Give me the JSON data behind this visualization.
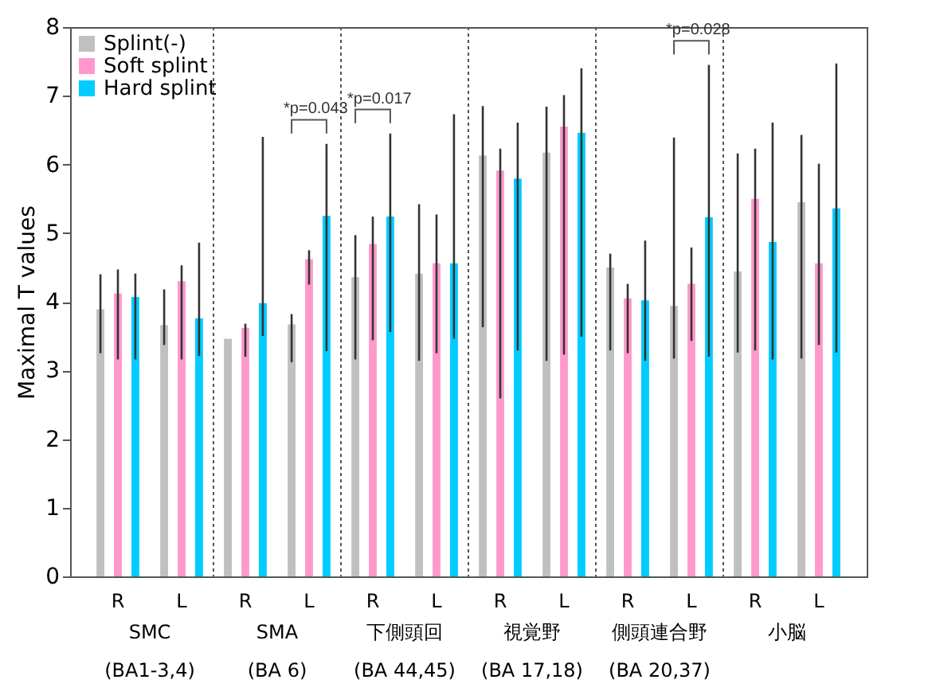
{
  "chart_data": {
    "type": "bar",
    "ylabel": "Maximal T values",
    "categories": [
      "R",
      "L",
      "R",
      "L",
      "R",
      "L",
      "R",
      "L",
      "R",
      "L",
      "R",
      "L"
    ],
    "series": [
      {
        "name": "Splint(-)",
        "color": "#c0c0c0",
        "values": [
          3.89,
          3.66,
          3.46,
          3.67,
          4.36,
          4.41,
          6.13,
          6.17,
          4.5,
          3.94,
          4.44,
          5.45
        ],
        "errors": [
          [
            3.25,
            4.4
          ],
          [
            3.37,
            4.18
          ],
          null,
          [
            3.12,
            3.82
          ],
          [
            3.16,
            4.97
          ],
          [
            3.14,
            5.42
          ],
          [
            3.63,
            6.85
          ],
          [
            3.14,
            6.84
          ],
          [
            3.29,
            4.7
          ],
          [
            3.17,
            6.39
          ],
          [
            3.26,
            6.16
          ],
          [
            3.17,
            6.43
          ]
        ]
      },
      {
        "name": "Soft splint",
        "color": "#ff99cc",
        "values": [
          4.12,
          4.3,
          3.62,
          4.62,
          4.84,
          4.56,
          5.91,
          6.55,
          4.05,
          4.26,
          5.5,
          4.56
        ],
        "errors": [
          [
            3.16,
            4.47
          ],
          [
            3.16,
            4.53
          ],
          [
            3.2,
            3.68
          ],
          [
            4.25,
            4.75
          ],
          [
            3.44,
            5.24
          ],
          [
            3.25,
            5.27
          ],
          [
            2.59,
            6.23
          ],
          [
            3.23,
            7.01
          ],
          [
            3.25,
            4.26
          ],
          [
            3.43,
            4.79
          ],
          [
            3.29,
            6.23
          ],
          [
            3.37,
            6.01
          ]
        ]
      },
      {
        "name": "Hard splint",
        "color": "#00ccff",
        "values": [
          4.07,
          3.76,
          3.98,
          5.25,
          5.24,
          4.56,
          5.79,
          6.46,
          4.02,
          5.23,
          4.87,
          5.36
        ],
        "errors": [
          [
            3.16,
            4.41
          ],
          [
            3.21,
            4.86
          ],
          [
            3.5,
            6.4
          ],
          [
            3.28,
            6.3
          ],
          [
            3.56,
            6.45
          ],
          [
            3.46,
            6.73
          ],
          [
            3.29,
            6.61
          ],
          [
            3.49,
            7.4
          ],
          [
            3.14,
            4.89
          ],
          [
            3.2,
            7.45
          ],
          [
            3.16,
            6.61
          ],
          [
            3.26,
            7.47
          ]
        ]
      }
    ],
    "ylim": [
      0,
      8
    ],
    "yticks": [
      0,
      1,
      2,
      3,
      4,
      5,
      6,
      7,
      8
    ],
    "grid": false,
    "legend": "top left",
    "annotations": [
      "SMC\n(BA1-3,4)",
      "SMA\n(BA 6)",
      "下側頭回\n(BA 44,45)",
      "視覚野\n(BA 17,18)",
      "側頭連合野\n(BA 20,37)",
      "小脳",
      "*p=0.043",
      "*p=0.017",
      "*p=0.028"
    ]
  }
}
